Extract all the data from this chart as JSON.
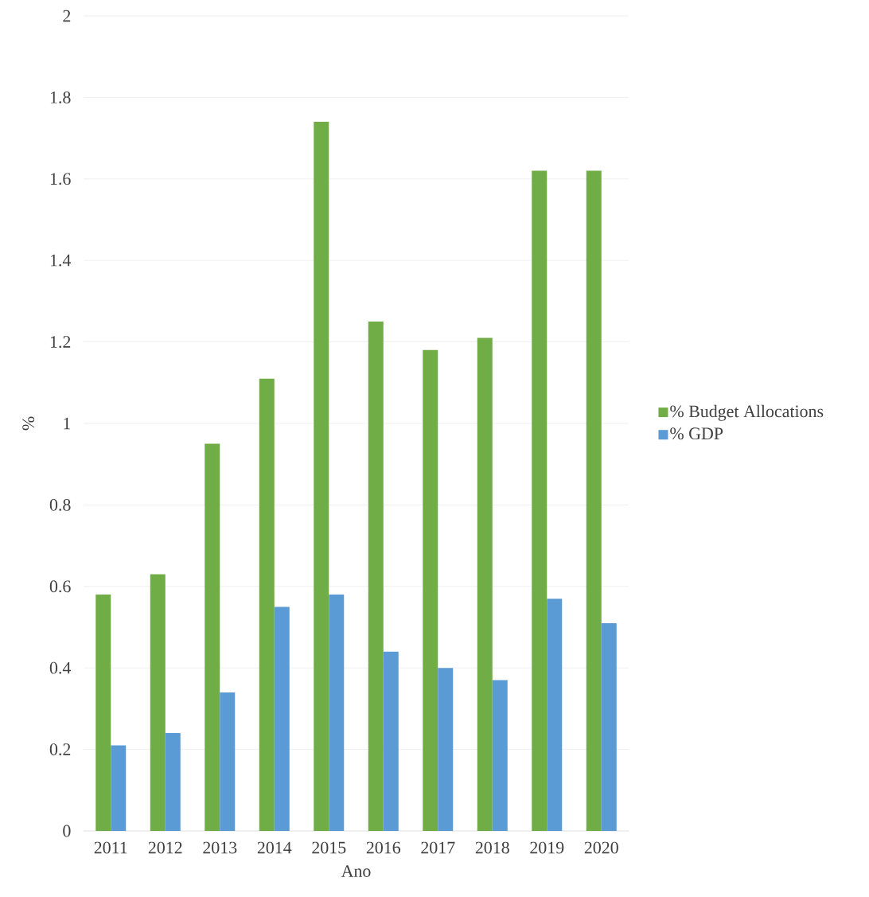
{
  "chart_data": {
    "type": "bar",
    "xlabel": "Ano",
    "ylabel": "%",
    "categories": [
      "2011",
      "2012",
      "2013",
      "2014",
      "2015",
      "2016",
      "2017",
      "2018",
      "2019",
      "2020"
    ],
    "series": [
      {
        "name": "% Budget Allocations",
        "color": "#70ad47",
        "values": [
          0.58,
          0.63,
          0.95,
          1.11,
          1.74,
          1.25,
          1.18,
          1.21,
          1.62,
          1.62
        ]
      },
      {
        "name": "% GDP",
        "color": "#5b9bd5",
        "values": [
          0.21,
          0.24,
          0.34,
          0.55,
          0.58,
          0.44,
          0.4,
          0.37,
          0.57,
          0.51
        ]
      }
    ],
    "ylim": [
      0,
      2
    ],
    "yticks": [
      0,
      0.2,
      0.4,
      0.6,
      0.8,
      1,
      1.2,
      1.4,
      1.6,
      1.8,
      2
    ],
    "grid": "y",
    "legend": "right"
  }
}
